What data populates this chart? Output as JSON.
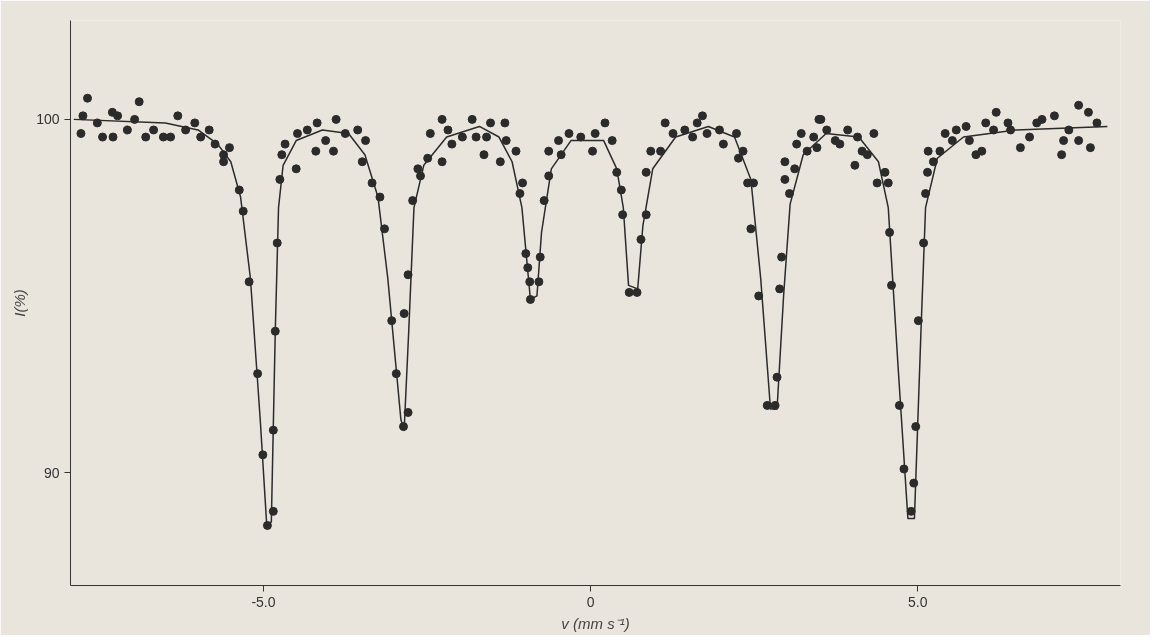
{
  "chart_data": {
    "type": "scatter",
    "xlabel": "v (mm s⁻¹)",
    "ylabel": "I(%)",
    "xlim": [
      -7.95,
      8.1
    ],
    "ylim": [
      86.8,
      102.8
    ],
    "xticks": [
      {
        "value": -5,
        "label": "-5.0"
      },
      0,
      {
        "value": 5,
        "label": "5.0"
      }
    ],
    "yticks": [
      90,
      100
    ],
    "grid": false,
    "series": [
      {
        "marker": "circle",
        "color": "#2b2b2b",
        "x": [
          -7.69,
          -7.76,
          -7.79,
          -7.54,
          -7.46,
          -7.31,
          -7.3,
          -7.23,
          -7.08,
          -6.9,
          -6.97,
          -6.8,
          -6.68,
          -6.53,
          -6.42,
          -6.31,
          -6.19,
          -6.05,
          -5.96,
          -5.83,
          -5.74,
          -5.61,
          -5.52,
          -5.61,
          -5.37,
          -5.31,
          -5.22,
          -5.09,
          -5.01,
          -4.94,
          -4.85,
          -4.85,
          -4.82,
          -4.79,
          -4.75,
          -4.72,
          -4.67,
          -4.5,
          -4.48,
          -4.33,
          -4.2,
          -4.18,
          -4.05,
          -3.89,
          -3.93,
          -3.75,
          -3.56,
          -3.44,
          -3.49,
          -3.34,
          -3.22,
          -3.15,
          -3.04,
          -2.97,
          -2.86,
          -2.79,
          -2.85,
          -2.79,
          -2.72,
          -2.64,
          -2.6,
          -2.49,
          -2.45,
          -2.27,
          -2.27,
          -2.12,
          -2.18,
          -1.96,
          -1.81,
          -1.75,
          -1.63,
          -1.59,
          -1.53,
          -1.38,
          -1.31,
          -1.29,
          -1.14,
          -1.04,
          -1.08,
          -0.99,
          -0.96,
          -0.93,
          -0.92,
          -0.79,
          -0.77,
          -0.71,
          -0.64,
          -0.64,
          -0.45,
          -0.49,
          -0.33,
          -0.15,
          0.07,
          0.03,
          0.22,
          0.33,
          0.4,
          0.47,
          0.49,
          0.59,
          0.71,
          0.77,
          0.85,
          0.85,
          0.92,
          1.07,
          1.14,
          1.26,
          1.44,
          1.56,
          1.71,
          1.63,
          1.78,
          1.97,
          2.03,
          2.23,
          2.33,
          2.26,
          2.4,
          2.49,
          2.45,
          2.57,
          2.7,
          2.82,
          2.85,
          2.89,
          2.92,
          3.04,
          2.97,
          3.12,
          2.97,
          3.15,
          3.31,
          3.22,
          3.41,
          3.49,
          3.52,
          3.46,
          3.61,
          3.74,
          3.81,
          3.93,
          4.08,
          4.33,
          4.04,
          4.15,
          4.23,
          4.5,
          4.38,
          4.55,
          4.57,
          4.6,
          4.72,
          4.79,
          4.9,
          4.94,
          4.97,
          5.01,
          5.09,
          5.12,
          5.15,
          5.24,
          5.16,
          5.34,
          5.42,
          5.53,
          5.59,
          5.79,
          5.74,
          5.89,
          5.98,
          6.04,
          6.2,
          6.16,
          6.38,
          6.42,
          6.57,
          6.71,
          6.82,
          6.9,
          7.09,
          7.23,
          7.2,
          7.31,
          7.46,
          7.46,
          7.61,
          7.64,
          7.74
        ],
        "values": [
          100.6,
          100.1,
          99.6,
          99.9,
          99.5,
          100.2,
          99.5,
          100.1,
          99.7,
          100.5,
          100.0,
          99.5,
          99.7,
          99.5,
          99.5,
          100.1,
          99.7,
          99.9,
          99.5,
          99.7,
          99.3,
          99.0,
          99.2,
          98.8,
          98.0,
          97.4,
          95.4,
          92.8,
          90.5,
          88.5,
          88.9,
          91.2,
          94.0,
          96.5,
          98.3,
          99.0,
          99.3,
          98.6,
          99.6,
          99.7,
          99.1,
          99.9,
          99.4,
          100.0,
          99.1,
          99.6,
          99.7,
          99.4,
          98.8,
          98.2,
          97.8,
          96.9,
          94.3,
          92.8,
          91.3,
          91.7,
          94.5,
          95.6,
          97.7,
          98.6,
          98.4,
          98.9,
          99.6,
          98.8,
          100.0,
          99.3,
          99.7,
          99.5,
          100.0,
          99.5,
          99.0,
          99.5,
          99.9,
          98.8,
          99.9,
          99.4,
          99.1,
          98.2,
          97.9,
          96.2,
          95.8,
          95.4,
          94.9,
          95.4,
          96.1,
          97.7,
          98.4,
          99.1,
          99.0,
          99.4,
          99.6,
          99.5,
          99.6,
          99.1,
          99.9,
          99.4,
          98.5,
          98.0,
          97.3,
          95.1,
          95.1,
          96.6,
          97.3,
          98.5,
          99.1,
          99.1,
          99.9,
          99.6,
          99.7,
          99.5,
          100.1,
          99.9,
          99.6,
          99.7,
          99.3,
          99.6,
          99.1,
          98.9,
          98.2,
          98.2,
          96.9,
          95.0,
          91.9,
          91.9,
          92.7,
          95.2,
          96.1,
          97.9,
          98.3,
          98.6,
          98.8,
          99.3,
          99.1,
          99.6,
          99.5,
          100.0,
          100.0,
          99.2,
          99.7,
          99.4,
          99.3,
          99.7,
          99.5,
          99.6,
          98.7,
          99.1,
          99.0,
          98.5,
          98.2,
          98.2,
          96.8,
          95.3,
          91.9,
          90.1,
          88.9,
          89.7,
          91.3,
          94.3,
          96.5,
          97.9,
          98.5,
          98.8,
          99.1,
          99.1,
          99.6,
          99.4,
          99.7,
          99.4,
          99.8,
          99.0,
          99.1,
          99.9,
          100.2,
          99.7,
          99.9,
          99.7,
          99.2,
          99.5,
          99.9,
          100.0,
          100.1,
          99.4,
          99.0,
          99.7,
          100.4,
          99.4,
          100.2,
          99.2,
          99.9
        ]
      },
      {
        "type": "line",
        "line_style": "solid",
        "color": "#2b2b2b",
        "x": [
          -7.9,
          -6.5,
          -6.0,
          -5.7,
          -5.5,
          -5.35,
          -5.2,
          -5.05,
          -4.95,
          -4.88,
          -4.82,
          -4.77,
          -4.7,
          -4.5,
          -4.1,
          -3.7,
          -3.45,
          -3.25,
          -3.1,
          -2.9,
          -2.85,
          -2.78,
          -2.7,
          -2.55,
          -2.2,
          -1.7,
          -1.4,
          -1.2,
          -1.05,
          -0.95,
          -0.92,
          -0.82,
          -0.75,
          -0.6,
          -0.3,
          0.2,
          0.4,
          0.5,
          0.58,
          0.72,
          0.8,
          0.95,
          1.3,
          1.8,
          2.2,
          2.45,
          2.6,
          2.75,
          2.85,
          2.95,
          3.05,
          3.25,
          3.6,
          4.1,
          4.4,
          4.55,
          4.7,
          4.85,
          4.95,
          5.05,
          5.12,
          5.3,
          5.7,
          6.5,
          7.9
        ],
        "values": [
          100.0,
          99.9,
          99.7,
          99.3,
          98.8,
          97.8,
          95.5,
          91.5,
          88.5,
          88.6,
          94.0,
          97.5,
          98.7,
          99.4,
          99.7,
          99.6,
          99.0,
          97.8,
          95.5,
          91.5,
          91.2,
          94.0,
          97.5,
          98.7,
          99.5,
          99.8,
          99.5,
          98.8,
          97.5,
          95.5,
          94.9,
          95.0,
          96.8,
          98.6,
          99.4,
          99.4,
          98.6,
          97.5,
          95.3,
          95.2,
          97.0,
          98.6,
          99.5,
          99.8,
          99.5,
          98.3,
          95.5,
          91.8,
          91.8,
          95.0,
          97.6,
          99.0,
          99.6,
          99.5,
          98.8,
          97.5,
          93.0,
          88.7,
          88.7,
          94.0,
          97.5,
          98.9,
          99.5,
          99.7,
          99.8
        ]
      }
    ]
  }
}
